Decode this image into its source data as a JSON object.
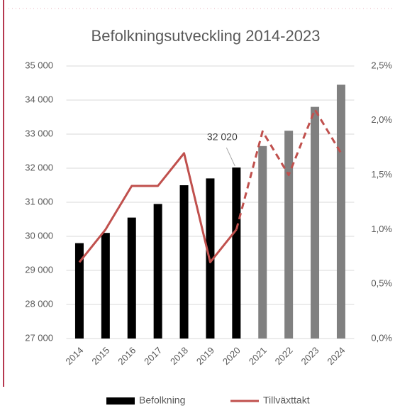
{
  "chart_data": {
    "type": "bar_line",
    "title": "Befolkningsutveckling 2014-2023",
    "categories": [
      "2014",
      "2015",
      "2016",
      "2017",
      "2018",
      "2019",
      "2020",
      "2021",
      "2022",
      "2023",
      "2024"
    ],
    "series": [
      {
        "name": "Befolkning",
        "type": "bar",
        "color": "#000000",
        "colors": [
          "#000000",
          "#000000",
          "#000000",
          "#000000",
          "#000000",
          "#000000",
          "#000000",
          "#808080",
          "#808080",
          "#808080",
          "#808080"
        ],
        "values": [
          29800,
          30100,
          30550,
          30950,
          31500,
          31700,
          32020,
          32650,
          33100,
          33800,
          34450
        ],
        "value_labels": [
          null,
          null,
          null,
          null,
          null,
          null,
          "32 020",
          null,
          null,
          null,
          null
        ]
      },
      {
        "name": "Tillväxttakt",
        "type": "line",
        "axis": "y2",
        "color": "#c0504d",
        "dashed_from": "2020",
        "values": [
          0.7,
          1.0,
          1.4,
          1.4,
          1.7,
          0.7,
          1.0,
          1.9,
          1.5,
          2.1,
          1.7
        ]
      }
    ],
    "ylim": [
      27000,
      35000
    ],
    "yticks": [
      {
        "value": 27000,
        "label": "27 000"
      },
      {
        "value": 28000,
        "label": "28 000"
      },
      {
        "value": 29000,
        "label": "29 000"
      },
      {
        "value": 30000,
        "label": "30 000"
      },
      {
        "value": 31000,
        "label": "31 000"
      },
      {
        "value": 32000,
        "label": "32 000"
      },
      {
        "value": 33000,
        "label": "33 000"
      },
      {
        "value": 34000,
        "label": "34 000"
      },
      {
        "value": 35000,
        "label": "35 000"
      }
    ],
    "y2lim": [
      0,
      2.5
    ],
    "y2ticks": [
      {
        "value": 0,
        "label": "0,0%"
      },
      {
        "value": 0.5,
        "label": "0,5%"
      },
      {
        "value": 1.0,
        "label": "1,0%"
      },
      {
        "value": 1.5,
        "label": "1,5%"
      },
      {
        "value": 2.0,
        "label": "2,0%"
      },
      {
        "value": 2.5,
        "label": "2,5%"
      }
    ],
    "grid": true,
    "legend": "bottom"
  }
}
